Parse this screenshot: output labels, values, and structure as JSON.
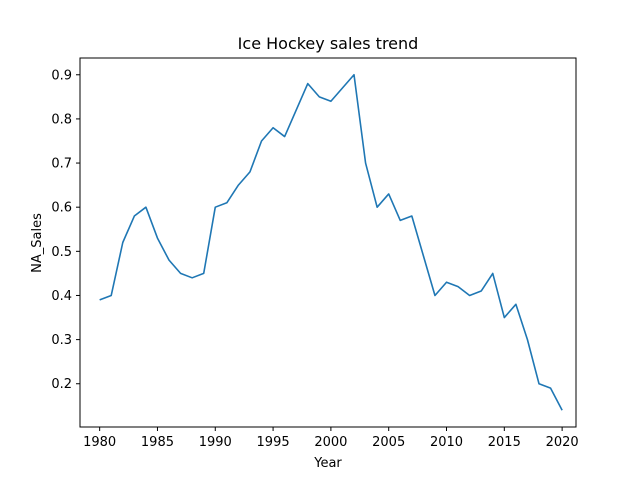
{
  "chart_data": {
    "type": "line",
    "title": "Ice Hockey sales trend",
    "xlabel": "Year",
    "ylabel": "NA_Sales",
    "xlim": [
      1978.3,
      2021.2
    ],
    "ylim": [
      0.102,
      0.938
    ],
    "xticks": [
      1980,
      1985,
      1990,
      1995,
      2000,
      2005,
      2010,
      2015,
      2020
    ],
    "yticks": [
      0.2,
      0.3,
      0.4,
      0.5,
      0.6,
      0.7,
      0.8,
      0.9
    ],
    "grid": false,
    "line_color": "#1f77b4",
    "series": [
      {
        "x": [
          1980,
          1981,
          1982,
          1983,
          1984,
          1985,
          1986,
          1987,
          1988,
          1989,
          1990,
          1991,
          1992,
          1993,
          1994,
          1995,
          1996,
          1997,
          1998,
          1999,
          2000,
          2001,
          2002,
          2003,
          2004,
          2005,
          2006,
          2007,
          2008,
          2009,
          2010,
          2011,
          2012,
          2013,
          2014,
          2015,
          2016,
          2017,
          2018,
          2019,
          2020
        ],
        "values": [
          0.39,
          0.4,
          0.52,
          0.58,
          0.6,
          0.53,
          0.48,
          0.45,
          0.44,
          0.45,
          0.6,
          0.61,
          0.65,
          0.68,
          0.75,
          0.78,
          0.76,
          0.82,
          0.88,
          0.85,
          0.84,
          0.87,
          0.9,
          0.7,
          0.6,
          0.63,
          0.57,
          0.58,
          0.49,
          0.4,
          0.43,
          0.42,
          0.4,
          0.41,
          0.45,
          0.35,
          0.38,
          0.3,
          0.2,
          0.19,
          0.14
        ]
      }
    ]
  }
}
